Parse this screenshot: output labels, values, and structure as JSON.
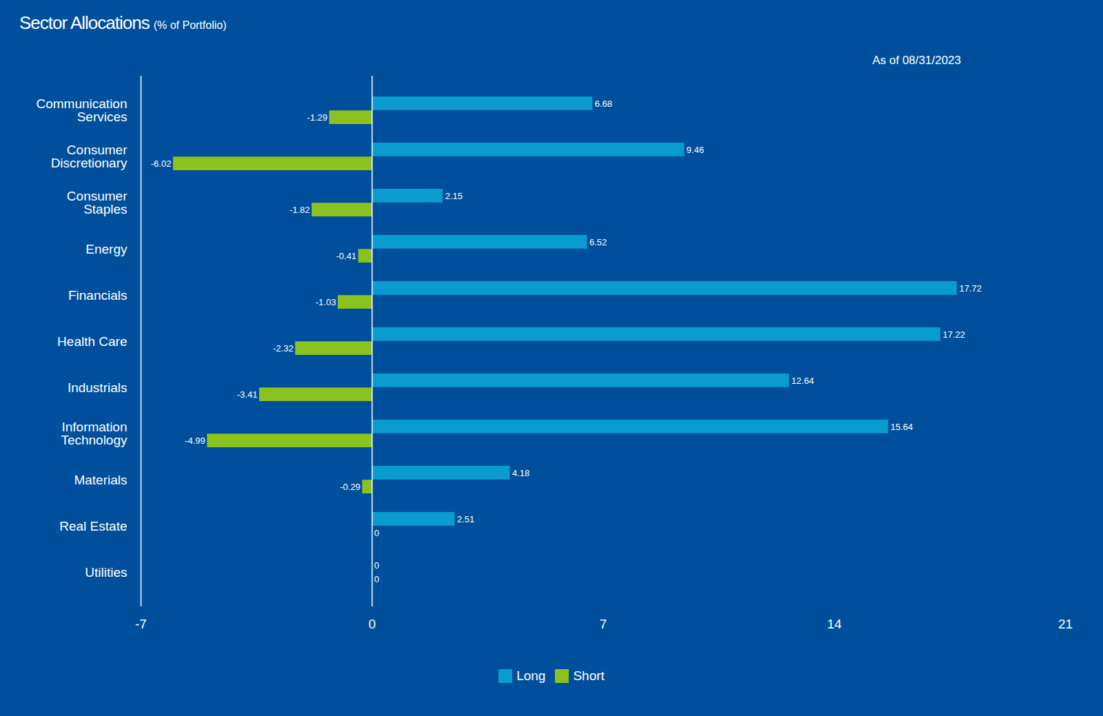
{
  "chart_data": {
    "type": "bar",
    "orientation": "horizontal",
    "title": "Sector Allocations",
    "subtitle": "(% of Portfolio)",
    "annotation": "As of 08/31/2023",
    "categories": [
      "Communication Services",
      "Consumer Discretionary",
      "Consumer Staples",
      "Energy",
      "Financials",
      "Health Care",
      "Industrials",
      "Information Technology",
      "Materials",
      "Real Estate",
      "Utilities"
    ],
    "series": [
      {
        "name": "Long",
        "color": "#0a9ccf",
        "values": [
          6.68,
          9.46,
          2.15,
          6.52,
          17.72,
          17.22,
          12.64,
          15.64,
          4.18,
          2.51,
          0
        ]
      },
      {
        "name": "Short",
        "color": "#8cc21e",
        "values": [
          -1.29,
          -6.02,
          -1.82,
          -0.41,
          -1.03,
          -2.32,
          -3.41,
          -4.99,
          -0.29,
          0,
          0
        ]
      }
    ],
    "xlim": [
      -7,
      21
    ],
    "xticks": [
      -7,
      0,
      7,
      14,
      21
    ],
    "data_labels": true,
    "legend": "bottom",
    "grid": false
  }
}
